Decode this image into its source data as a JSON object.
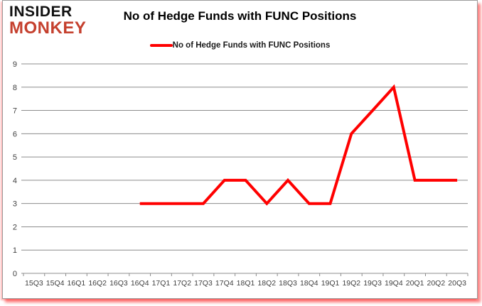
{
  "logo": {
    "line1": "INSIDER",
    "line2": "MONKEY",
    "color": "#c5402e"
  },
  "header": {
    "title": "No of Hedge Funds with FUNC Positions"
  },
  "legend": {
    "label": "No of Hedge Funds with FUNC Positions",
    "color": "#ff0000"
  },
  "chart_data": {
    "type": "line",
    "title": "No of Hedge Funds with FUNC Positions",
    "categories": [
      "15Q3",
      "15Q4",
      "16Q1",
      "16Q2",
      "16Q3",
      "16Q4",
      "17Q1",
      "17Q2",
      "17Q3",
      "17Q4",
      "18Q1",
      "18Q2",
      "18Q3",
      "18Q4",
      "19Q1",
      "19Q2",
      "19Q3",
      "19Q4",
      "20Q1",
      "20Q2",
      "20Q3"
    ],
    "series": [
      {
        "name": "No of Hedge Funds with FUNC Positions",
        "color": "#ff0000",
        "values": [
          null,
          null,
          null,
          null,
          null,
          3,
          3,
          3,
          3,
          4,
          4,
          3,
          4,
          3,
          3,
          6,
          7,
          8,
          4,
          4,
          4
        ]
      }
    ],
    "xlabel": "",
    "ylabel": "",
    "ylim": [
      0,
      9
    ],
    "yticks": [
      0,
      1,
      2,
      3,
      4,
      5,
      6,
      7,
      8,
      9
    ],
    "grid": true,
    "legend_position": "top-center"
  },
  "style": {
    "grid_color": "#8c8c8c",
    "axis_color": "#8c8c8c",
    "tick_label_color": "#3f3f3f",
    "line_color": "#ff0000",
    "frame_border_color": "#9b9b9b",
    "frame_glow_color": "#fa1919"
  }
}
